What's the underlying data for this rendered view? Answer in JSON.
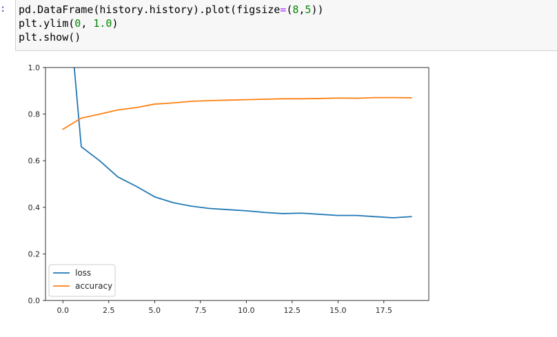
{
  "cell": {
    "prompt": ":",
    "lines": [
      [
        {
          "t": "pd.DataFrame(history.history).plot(figsize",
          "c": ""
        },
        {
          "t": "=",
          "c": "op"
        },
        {
          "t": "(",
          "c": ""
        },
        {
          "t": "8",
          "c": "num"
        },
        {
          "t": ",",
          "c": ""
        },
        {
          "t": "5",
          "c": "num"
        },
        {
          "t": "))",
          "c": ""
        }
      ],
      [
        {
          "t": "plt.ylim(",
          "c": ""
        },
        {
          "t": "0",
          "c": "num"
        },
        {
          "t": ", ",
          "c": ""
        },
        {
          "t": "1.0",
          "c": "num"
        },
        {
          "t": ")",
          "c": ""
        }
      ],
      [
        {
          "t": "plt.show()",
          "c": ""
        }
      ]
    ]
  },
  "colors": {
    "loss": "#1f77b4",
    "accuracy": "#ff7f0e",
    "code_operator": "#aa22ff",
    "code_number": "#008800"
  },
  "chart_data": {
    "type": "line",
    "x": [
      0,
      1,
      2,
      3,
      4,
      5,
      6,
      7,
      8,
      9,
      10,
      11,
      12,
      13,
      14,
      15,
      16,
      17,
      18,
      19
    ],
    "series": [
      {
        "name": "loss",
        "values": [
          1.55,
          0.66,
          0.6,
          0.53,
          0.49,
          0.445,
          0.42,
          0.405,
          0.395,
          0.39,
          0.385,
          0.378,
          0.373,
          0.375,
          0.37,
          0.365,
          0.365,
          0.36,
          0.355,
          0.36
        ]
      },
      {
        "name": "accuracy",
        "values": [
          0.735,
          0.783,
          0.8,
          0.818,
          0.828,
          0.843,
          0.848,
          0.855,
          0.858,
          0.86,
          0.862,
          0.864,
          0.866,
          0.866,
          0.867,
          0.869,
          0.868,
          0.871,
          0.871,
          0.87
        ]
      }
    ],
    "xlim": [
      -0.95,
      19.95
    ],
    "ylim": [
      0,
      1.0
    ],
    "xticks": [
      0.0,
      2.5,
      5.0,
      7.5,
      10.0,
      12.5,
      15.0,
      17.5
    ],
    "xtick_labels": [
      "0.0",
      "2.5",
      "5.0",
      "7.5",
      "10.0",
      "12.5",
      "15.0",
      "17.5"
    ],
    "yticks": [
      0.0,
      0.2,
      0.4,
      0.6,
      0.8,
      1.0
    ],
    "ytick_labels": [
      "0.0",
      "0.2",
      "0.4",
      "0.6",
      "0.8",
      "1.0"
    ],
    "grid": false,
    "legend": "lower-left",
    "title": "",
    "xlabel": "",
    "ylabel": ""
  }
}
